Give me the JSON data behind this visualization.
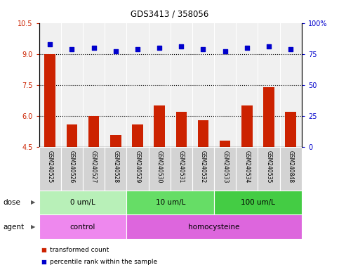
{
  "title": "GDS3413 / 358056",
  "samples": [
    "GSM240525",
    "GSM240526",
    "GSM240527",
    "GSM240528",
    "GSM240529",
    "GSM240530",
    "GSM240531",
    "GSM240532",
    "GSM240533",
    "GSM240534",
    "GSM240535",
    "GSM240848"
  ],
  "red_values": [
    9.0,
    5.6,
    6.0,
    5.1,
    5.6,
    6.5,
    6.2,
    5.8,
    4.8,
    6.5,
    7.4,
    6.2
  ],
  "blue_values_pct": [
    83,
    79,
    80,
    77,
    79,
    80,
    81,
    79,
    77,
    80,
    81,
    79
  ],
  "ylim_left": [
    4.5,
    10.5
  ],
  "ylim_right": [
    0,
    100
  ],
  "yticks_left": [
    4.5,
    6.0,
    7.5,
    9.0,
    10.5
  ],
  "yticks_right": [
    0,
    25,
    50,
    75,
    100
  ],
  "hlines": [
    6.0,
    7.5,
    9.0
  ],
  "dose_groups": [
    {
      "label": "0 um/L",
      "start": 0,
      "end": 4,
      "color": "#b8f0b8"
    },
    {
      "label": "10 um/L",
      "start": 4,
      "end": 8,
      "color": "#66dd66"
    },
    {
      "label": "100 um/L",
      "start": 8,
      "end": 12,
      "color": "#44cc44"
    }
  ],
  "agent_groups": [
    {
      "label": "control",
      "start": 0,
      "end": 4,
      "color": "#ee88ee"
    },
    {
      "label": "homocysteine",
      "start": 4,
      "end": 12,
      "color": "#dd66dd"
    }
  ],
  "bar_color": "#cc2200",
  "dot_color": "#0000cc",
  "legend_red": "transformed count",
  "legend_blue": "percentile rank within the sample",
  "dose_label": "dose",
  "agent_label": "agent"
}
